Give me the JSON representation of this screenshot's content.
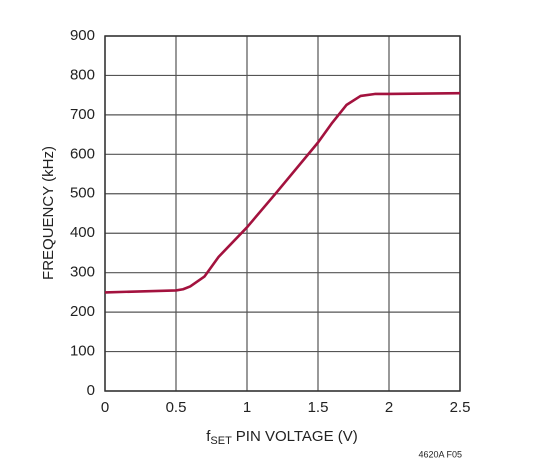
{
  "chart_data": {
    "type": "line",
    "xlabel_parts": [
      "f",
      "SET",
      "PIN VOLTAGE (V)"
    ],
    "ylabel": "FREQUENCY (kHz)",
    "footnote": "4620A F05",
    "x": [
      0,
      0.5,
      0.55,
      0.6,
      0.7,
      0.8,
      1,
      1.2,
      1.5,
      1.6,
      1.7,
      1.8,
      1.9,
      2,
      2.5
    ],
    "series": [
      {
        "color": "#a3123e",
        "values": [
          250,
          255,
          258,
          265,
          290,
          340,
          415,
          500,
          630,
          680,
          725,
          748,
          753,
          753,
          755
        ]
      }
    ],
    "xlim": [
      0,
      2.5
    ],
    "xticks": [
      0,
      0.5,
      1,
      1.5,
      2,
      2.5
    ],
    "ylim": [
      0,
      900
    ],
    "yticks": [
      0,
      100,
      200,
      300,
      400,
      500,
      600,
      700,
      800,
      900
    ],
    "grid": true
  }
}
